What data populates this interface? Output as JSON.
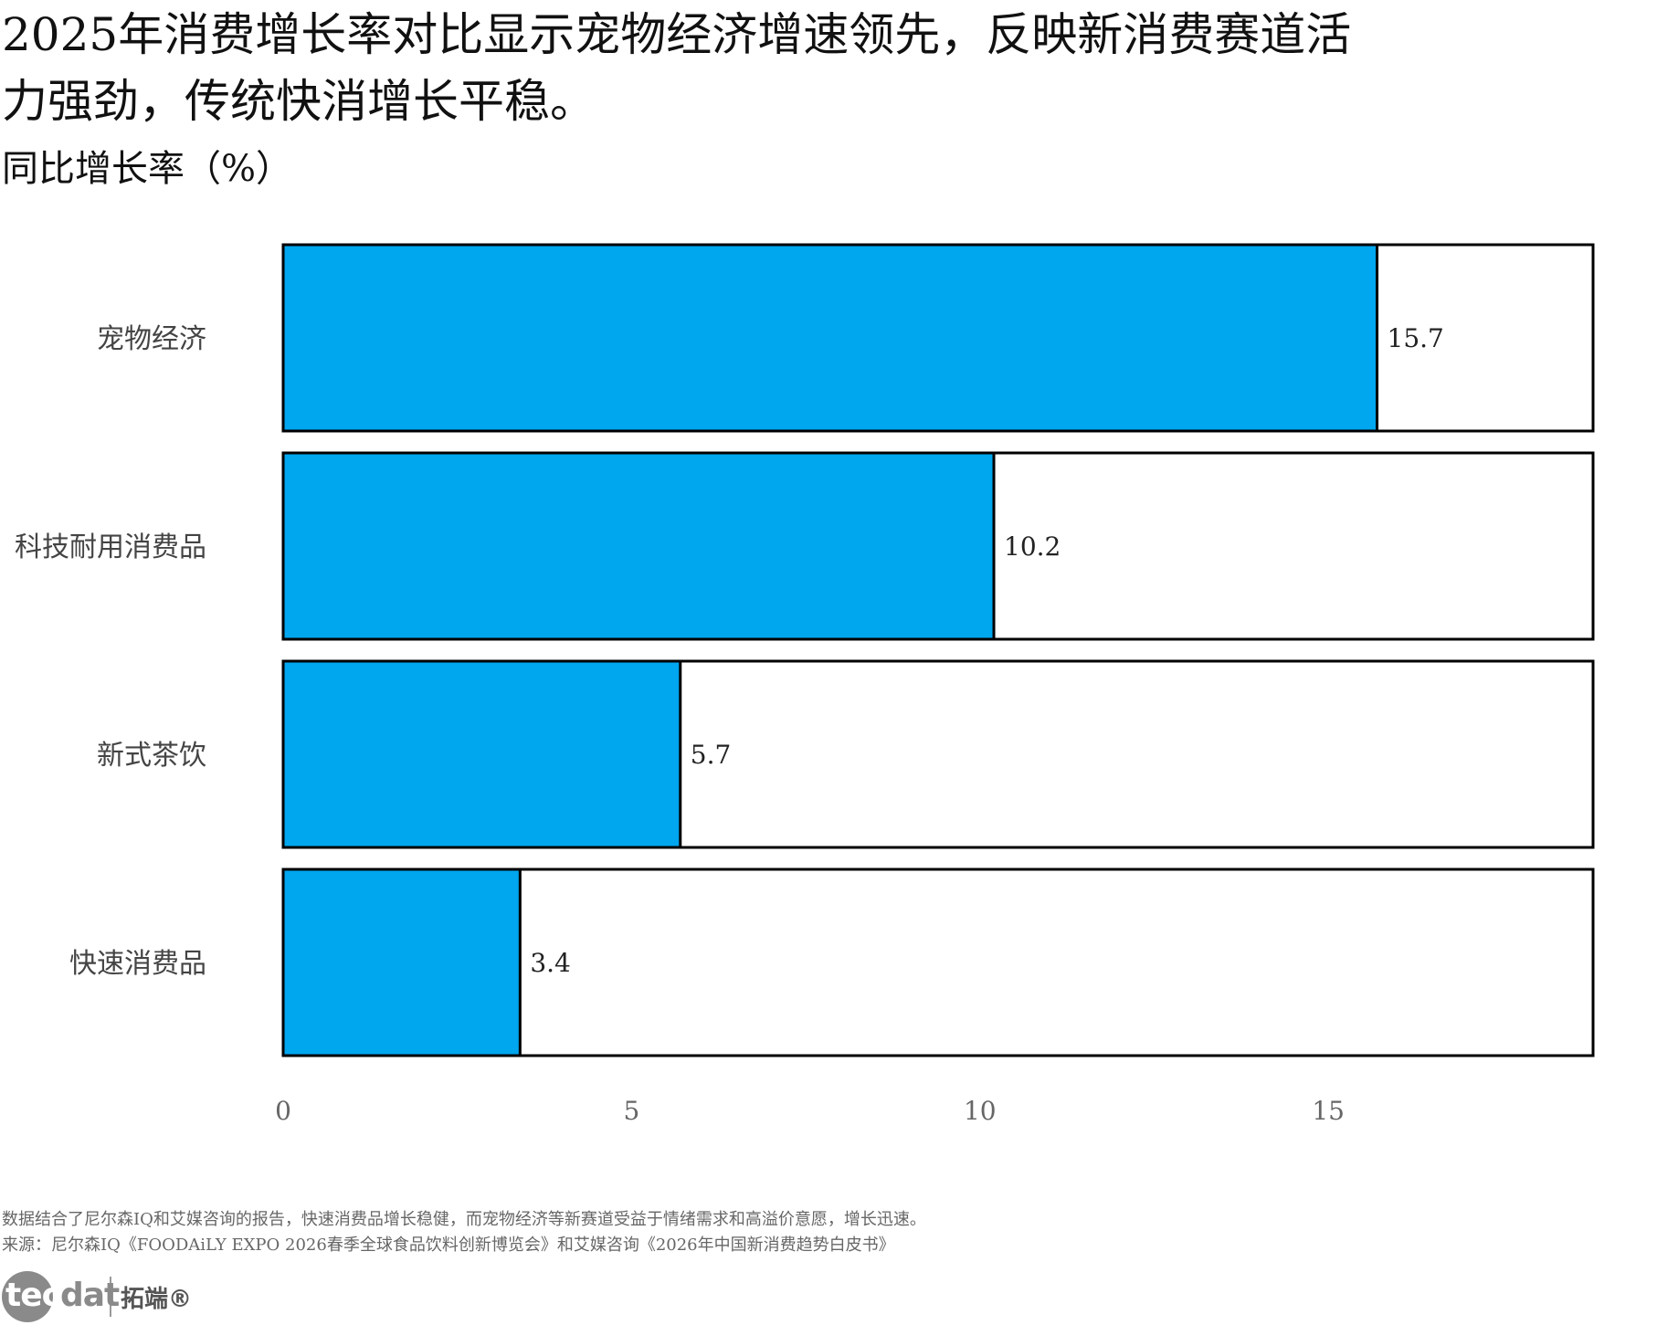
{
  "title": "2025年消费增长率对比显示宠物经济增速领先，反映新消费赛道活力强劲，传统快消增长平稳。",
  "subtitle": "同比增长率（%）",
  "chart_data": {
    "type": "bar",
    "orientation": "horizontal",
    "categories": [
      "宠物经济",
      "科技耐用消费品",
      "新式茶饮",
      "快速消费品"
    ],
    "values": [
      15.7,
      10.2,
      5.7,
      3.4
    ],
    "value_labels": [
      "15.7",
      "10.2",
      "5.7",
      "3.4"
    ],
    "xlim": [
      0,
      18.8
    ],
    "x_ticks": [
      0,
      5,
      10,
      15
    ],
    "grid": false,
    "bar_color": "#00a6ee",
    "background_bar_color": "#ffffff",
    "outline_color": "#000000"
  },
  "footer": {
    "note": "数据结合了尼尔森IQ和艾媒咨询的报告，快速消费品增长稳健，而宠物经济等新赛道受益于情绪需求和高溢价意愿，增长迅速。",
    "source": "来源：尼尔森IQ《FOODAiLY EXPO 2026春季全球食品饮料创新博览会》和艾媒咨询《2026年中国新消费趋势白皮书》"
  },
  "logo": {
    "word_head": "tec",
    "word_tail": "dat",
    "cn_text": "拓端®"
  }
}
